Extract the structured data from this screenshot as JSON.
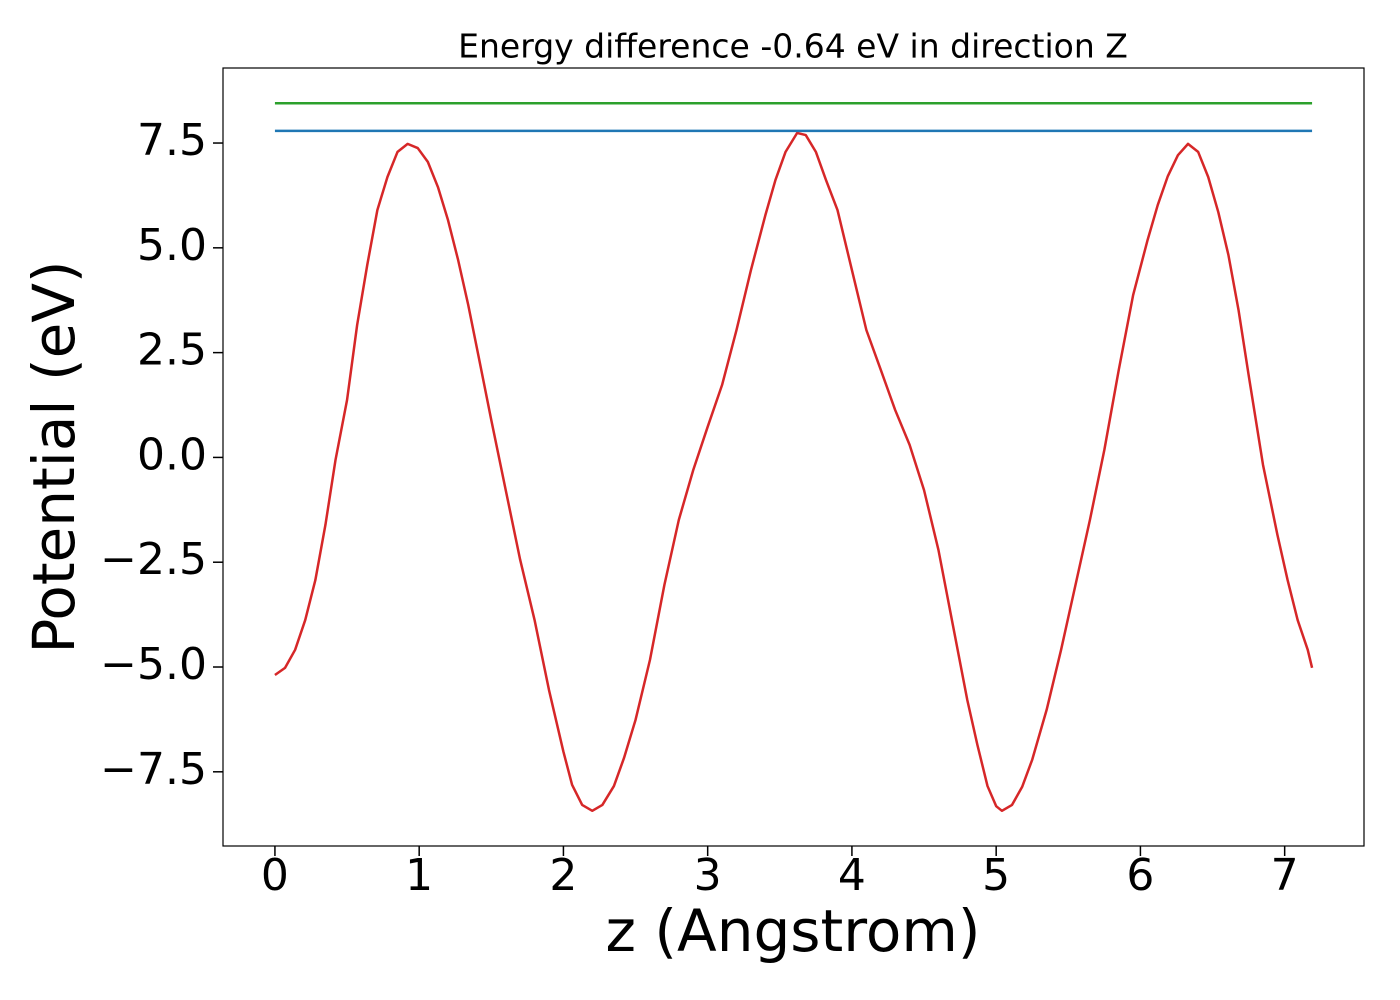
{
  "chart_data": {
    "type": "line",
    "title": "Energy difference -0.64 eV in direction Z",
    "x_label": "z (Angstrom)",
    "y_label": "Potential (eV)",
    "xlim": [
      -0.36,
      7.55
    ],
    "ylim": [
      -9.27,
      9.29
    ],
    "xticks": [
      0,
      1,
      2,
      3,
      4,
      5,
      6,
      7
    ],
    "yticks": [
      {
        "value": -7.5,
        "label": "−7.5"
      },
      {
        "value": -5.0,
        "label": "−5.0"
      },
      {
        "value": -2.5,
        "label": "−2.5"
      },
      {
        "value": 0.0,
        "label": "0.0"
      },
      2.5,
      {
        "value": 5.0,
        "label": "5.0"
      },
      7.5
    ],
    "grid": false,
    "series": [
      {
        "color": "#d62728",
        "x": [
          0,
          0.07,
          0.14,
          0.21,
          0.28,
          0.35,
          0.42,
          0.5,
          0.57,
          0.64,
          0.71,
          0.78,
          0.85,
          0.92,
          0.99,
          1.06,
          1.13,
          1.2,
          1.27,
          1.34,
          1.41,
          1.5,
          1.6,
          1.7,
          1.8,
          1.9,
          2.0,
          2.06,
          2.13,
          2.2,
          2.27,
          2.35,
          2.42,
          2.5,
          2.6,
          2.7,
          2.8,
          2.9,
          3.0,
          3.1,
          3.2,
          3.3,
          3.4,
          3.47,
          3.54,
          3.62,
          3.68,
          3.75,
          3.82,
          3.9,
          4.0,
          4.1,
          4.2,
          4.3,
          4.4,
          4.5,
          4.6,
          4.7,
          4.8,
          4.87,
          4.94,
          5.0,
          5.04,
          5.11,
          5.18,
          5.25,
          5.35,
          5.45,
          5.55,
          5.65,
          5.75,
          5.85,
          5.95,
          6.05,
          6.12,
          6.19,
          6.26,
          6.33,
          6.4,
          6.47,
          6.54,
          6.61,
          6.68,
          6.75,
          6.85,
          6.95,
          7.02,
          7.09,
          7.16,
          7.19
        ],
        "values": [
          -5.19,
          -5.02,
          -4.59,
          -3.88,
          -2.93,
          -1.61,
          -0.06,
          1.37,
          3.16,
          4.59,
          5.9,
          6.69,
          7.29,
          7.48,
          7.38,
          7.05,
          6.45,
          5.66,
          4.71,
          3.64,
          2.44,
          0.89,
          -0.78,
          -2.44,
          -3.88,
          -5.55,
          -7.02,
          -7.81,
          -8.29,
          -8.43,
          -8.29,
          -7.84,
          -7.17,
          -6.26,
          -4.83,
          -3.04,
          -1.49,
          -0.3,
          0.73,
          1.73,
          3.04,
          4.47,
          5.78,
          6.62,
          7.29,
          7.74,
          7.69,
          7.29,
          6.62,
          5.9,
          4.47,
          3.04,
          2.09,
          1.13,
          0.3,
          -0.78,
          -2.21,
          -4.0,
          -5.79,
          -6.86,
          -7.84,
          -8.32,
          -8.43,
          -8.29,
          -7.86,
          -7.21,
          -6.02,
          -4.59,
          -3.04,
          -1.49,
          0.18,
          2.09,
          3.88,
          5.19,
          6.02,
          6.71,
          7.21,
          7.48,
          7.29,
          6.69,
          5.85,
          4.83,
          3.52,
          1.97,
          -0.18,
          -1.85,
          -2.92,
          -3.88,
          -4.59,
          -5.02
        ]
      },
      {
        "color": "#1f77b4",
        "x": [
          0,
          7.19
        ],
        "values": [
          7.79,
          7.79
        ]
      },
      {
        "color": "#2ca02c",
        "x": [
          0,
          7.19
        ],
        "values": [
          8.45,
          8.45
        ]
      }
    ]
  }
}
